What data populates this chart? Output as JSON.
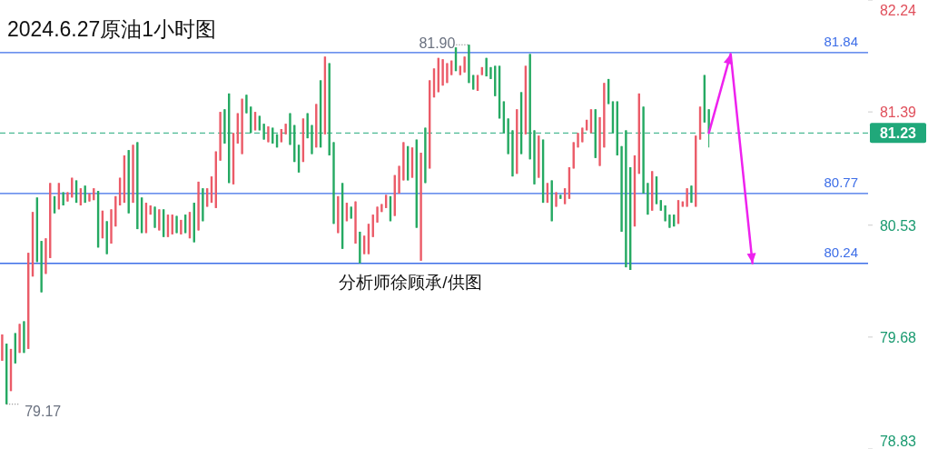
{
  "chart_data": {
    "type": "candlestick",
    "title": "2024.6.27原油1小时图",
    "categories": [
      null,
      null,
      null,
      null,
      null,
      null,
      null,
      null,
      null,
      null,
      null,
      null,
      null,
      null,
      null,
      null,
      null,
      null,
      null,
      null,
      null,
      null,
      null,
      null,
      null,
      null,
      null,
      null,
      null,
      null,
      null,
      null,
      null,
      null,
      null,
      null,
      null,
      null,
      null,
      null,
      null,
      null,
      null,
      null,
      null,
      null,
      null,
      null,
      null,
      null,
      null,
      null,
      null,
      null,
      null,
      null,
      null,
      null,
      null,
      null,
      null,
      null,
      null,
      null,
      null,
      null,
      null,
      null,
      null,
      null,
      null,
      null,
      null,
      null,
      null,
      null,
      null,
      null,
      null,
      null,
      null,
      null,
      null,
      null,
      null,
      null,
      null,
      null,
      null,
      null,
      null,
      null,
      null,
      null,
      null,
      null,
      null,
      null,
      null,
      null,
      null,
      null,
      null,
      null,
      null,
      null,
      null,
      null,
      null,
      null,
      null,
      null,
      null,
      null,
      null,
      null,
      null,
      null,
      null,
      null,
      null,
      null,
      null,
      null,
      null,
      null,
      null,
      null,
      null,
      null,
      null,
      null,
      null,
      null,
      null,
      null,
      null,
      null,
      null,
      null,
      null,
      null,
      null,
      null,
      null,
      null,
      null,
      null,
      null,
      null,
      null,
      null,
      null,
      null,
      null,
      null,
      null,
      null,
      null,
      null,
      null,
      null,
      null,
      null,
      null,
      null,
      null,
      null,
      null,
      null,
      null,
      null,
      null,
      null,
      null,
      null,
      null,
      null,
      null,
      null,
      null,
      null,
      null,
      null,
      null,
      null,
      null,
      null,
      null,
      null,
      null,
      null,
      null,
      null,
      null,
      null,
      null,
      null,
      null
    ],
    "ohlc": [
      [
        79.5,
        79.7,
        79.5,
        79.7
      ],
      [
        79.63,
        79.63,
        79.17,
        79.17
      ],
      [
        79.27,
        79.59,
        79.27,
        79.59
      ],
      [
        79.71,
        79.71,
        79.48,
        79.48
      ],
      [
        79.56,
        79.78,
        79.56,
        79.78
      ],
      [
        79.8,
        79.8,
        79.56,
        79.56
      ],
      [
        79.59,
        80.32,
        79.59,
        80.32
      ],
      [
        80.14,
        80.63,
        80.14,
        80.63
      ],
      [
        80.74,
        80.74,
        80.25,
        80.25
      ],
      [
        80.41,
        80.41,
        80.02,
        80.02
      ],
      [
        80.16,
        80.43,
        80.16,
        80.43
      ],
      [
        80.28,
        80.85,
        80.28,
        80.85
      ],
      [
        80.75,
        80.75,
        80.62,
        80.62
      ],
      [
        80.65,
        80.85,
        80.65,
        80.85
      ],
      [
        80.78,
        80.78,
        80.68,
        80.68
      ],
      [
        80.71,
        80.78,
        80.71,
        80.78
      ],
      [
        80.74,
        80.89,
        80.74,
        80.89
      ],
      [
        80.87,
        80.87,
        80.7,
        80.7
      ],
      [
        80.68,
        80.81,
        80.68,
        80.81
      ],
      [
        80.83,
        80.83,
        80.7,
        80.7
      ],
      [
        80.71,
        80.77,
        80.71,
        80.77
      ],
      [
        80.72,
        80.81,
        80.72,
        80.81
      ],
      [
        80.79,
        80.79,
        80.36,
        80.36
      ],
      [
        80.43,
        80.64,
        80.43,
        80.64
      ],
      [
        80.56,
        80.56,
        80.31,
        80.31
      ],
      [
        80.39,
        80.65,
        80.39,
        80.65
      ],
      [
        80.52,
        80.75,
        80.52,
        80.75
      ],
      [
        80.68,
        80.89,
        80.68,
        80.89
      ],
      [
        80.7,
        81.06,
        80.7,
        81.06
      ],
      [
        81.1,
        81.1,
        80.62,
        80.62
      ],
      [
        80.7,
        81.14,
        80.7,
        81.14
      ],
      [
        81.16,
        81.16,
        80.5,
        80.5
      ],
      [
        80.74,
        80.74,
        80.47,
        80.47
      ],
      [
        80.47,
        80.7,
        80.47,
        80.7
      ],
      [
        80.61,
        80.68,
        80.61,
        80.68
      ],
      [
        80.67,
        80.67,
        80.51,
        80.51
      ],
      [
        80.49,
        80.65,
        80.49,
        80.65
      ],
      [
        80.65,
        80.65,
        80.44,
        80.44
      ],
      [
        80.44,
        80.61,
        80.44,
        80.61
      ],
      [
        80.46,
        80.61,
        80.46,
        80.61
      ],
      [
        80.6,
        80.6,
        80.47,
        80.47
      ],
      [
        80.46,
        80.57,
        80.46,
        80.57
      ],
      [
        80.61,
        80.61,
        80.47,
        80.47
      ],
      [
        80.43,
        80.63,
        80.43,
        80.63
      ],
      [
        80.7,
        80.7,
        80.4,
        80.4
      ],
      [
        80.49,
        80.86,
        80.49,
        80.86
      ],
      [
        80.81,
        80.81,
        80.56,
        80.56
      ],
      [
        80.67,
        80.81,
        80.67,
        80.81
      ],
      [
        80.7,
        80.9,
        80.7,
        80.9
      ],
      [
        80.66,
        81.09,
        80.66,
        81.09
      ],
      [
        81.02,
        81.39,
        81.02,
        81.39
      ],
      [
        81.41,
        81.41,
        81.15,
        81.15
      ],
      [
        81.53,
        81.53,
        80.85,
        80.85
      ],
      [
        80.84,
        81.23,
        80.84,
        81.23
      ],
      [
        81.15,
        81.38,
        81.15,
        81.38
      ],
      [
        81.07,
        81.49,
        81.07,
        81.49
      ],
      [
        81.52,
        81.52,
        81.38,
        81.38
      ],
      [
        81.43,
        81.43,
        81.23,
        81.23
      ],
      [
        81.25,
        81.39,
        81.25,
        81.39
      ],
      [
        81.36,
        81.36,
        81.25,
        81.25
      ],
      [
        81.3,
        81.3,
        81.18,
        81.18
      ],
      [
        81.16,
        81.28,
        81.16,
        81.28
      ],
      [
        81.27,
        81.27,
        81.15,
        81.15
      ],
      [
        81.22,
        81.22,
        81.12,
        81.12
      ],
      [
        81.16,
        81.26,
        81.16,
        81.26
      ],
      [
        81.22,
        81.3,
        81.22,
        81.3
      ],
      [
        81.38,
        81.38,
        81.14,
        81.14
      ],
      [
        81.29,
        81.29,
        81.01,
        81.01
      ],
      [
        81.14,
        81.14,
        80.93,
        80.93
      ],
      [
        81.01,
        81.34,
        81.01,
        81.34
      ],
      [
        81.38,
        81.38,
        81.19,
        81.19
      ],
      [
        81.29,
        81.29,
        81.07,
        81.07
      ],
      [
        81.12,
        81.45,
        81.12,
        81.45
      ],
      [
        81.63,
        81.63,
        81.12,
        81.12
      ],
      [
        81.22,
        81.81,
        81.22,
        81.81
      ],
      [
        81.76,
        81.76,
        81.06,
        81.06
      ],
      [
        81.16,
        81.16,
        80.54,
        80.54
      ],
      [
        80.47,
        80.75,
        80.47,
        80.75
      ],
      [
        80.85,
        80.85,
        80.35,
        80.35
      ],
      [
        80.56,
        80.7,
        80.56,
        80.7
      ],
      [
        80.67,
        80.67,
        80.58,
        80.58
      ],
      [
        80.39,
        80.71,
        80.39,
        80.71
      ],
      [
        80.48,
        80.48,
        80.24,
        80.24
      ],
      [
        80.31,
        80.45,
        80.31,
        80.45
      ],
      [
        80.31,
        80.54,
        80.31,
        80.54
      ],
      [
        80.44,
        80.61,
        80.44,
        80.61
      ],
      [
        80.55,
        80.67,
        80.55,
        80.67
      ],
      [
        80.63,
        80.69,
        80.63,
        80.69
      ],
      [
        80.66,
        80.76,
        80.66,
        80.76
      ],
      [
        80.75,
        80.75,
        80.56,
        80.56
      ],
      [
        80.6,
        80.91,
        80.6,
        80.91
      ],
      [
        80.77,
        80.98,
        80.77,
        80.98
      ],
      [
        80.87,
        81.16,
        80.87,
        81.16
      ],
      [
        81.13,
        81.13,
        80.87,
        80.87
      ],
      [
        80.89,
        81.12,
        80.89,
        81.12
      ],
      [
        81.18,
        81.18,
        80.51,
        80.51
      ],
      [
        80.26,
        81.08,
        80.26,
        81.08
      ],
      [
        81.27,
        81.27,
        80.85,
        80.85
      ],
      [
        80.96,
        81.63,
        80.96,
        81.63
      ],
      [
        81.5,
        81.72,
        81.5,
        81.72
      ],
      [
        81.54,
        81.8,
        81.54,
        81.8
      ],
      [
        81.59,
        81.79,
        81.59,
        81.79
      ],
      [
        81.61,
        81.76,
        81.61,
        81.76
      ],
      [
        81.67,
        81.78,
        81.67,
        81.78
      ],
      [
        81.88,
        81.88,
        81.7,
        81.7
      ],
      [
        81.67,
        81.74,
        81.67,
        81.74
      ],
      [
        81.69,
        81.81,
        81.69,
        81.81
      ],
      [
        81.9,
        81.9,
        81.61,
        81.61
      ],
      [
        81.67,
        81.67,
        81.56,
        81.56
      ],
      [
        81.55,
        81.67,
        81.55,
        81.67
      ],
      [
        81.67,
        81.73,
        81.67,
        81.73
      ],
      [
        81.8,
        81.8,
        81.66,
        81.66
      ],
      [
        81.73,
        81.73,
        81.64,
        81.64
      ],
      [
        81.74,
        81.74,
        81.51,
        81.51
      ],
      [
        81.74,
        81.74,
        81.34,
        81.34
      ],
      [
        81.47,
        81.47,
        81.23,
        81.23
      ],
      [
        81.34,
        81.34,
        81.07,
        81.07
      ],
      [
        81.25,
        81.25,
        80.9,
        80.9
      ],
      [
        80.92,
        81.41,
        80.92,
        81.41
      ],
      [
        81.54,
        81.54,
        81.07,
        81.07
      ],
      [
        81.22,
        81.74,
        81.22,
        81.74
      ],
      [
        81.83,
        81.83,
        81.03,
        81.03
      ],
      [
        81.25,
        81.25,
        80.84,
        80.84
      ],
      [
        80.89,
        81.21,
        80.89,
        81.21
      ],
      [
        81.18,
        81.18,
        80.7,
        80.7
      ],
      [
        80.7,
        80.85,
        80.7,
        80.85
      ],
      [
        80.87,
        80.87,
        80.56,
        80.56
      ],
      [
        80.67,
        80.78,
        80.67,
        80.78
      ],
      [
        80.76,
        80.76,
        80.73,
        80.73
      ],
      [
        80.69,
        80.81,
        80.69,
        80.81
      ],
      [
        80.73,
        80.97,
        80.73,
        80.97
      ],
      [
        80.96,
        81.16,
        80.96,
        81.16
      ],
      [
        81.12,
        81.23,
        81.12,
        81.23
      ],
      [
        81.16,
        81.27,
        81.16,
        81.27
      ],
      [
        81.25,
        81.33,
        81.25,
        81.33
      ],
      [
        81.23,
        81.41,
        81.23,
        81.41
      ],
      [
        81.41,
        81.41,
        81.04,
        81.04
      ],
      [
        80.98,
        81.35,
        80.98,
        81.35
      ],
      [
        81.12,
        81.61,
        81.12,
        81.61
      ],
      [
        81.64,
        81.64,
        81.45,
        81.45
      ],
      [
        81.47,
        81.47,
        81.23,
        81.23
      ],
      [
        81.47,
        81.47,
        81.06,
        81.06
      ],
      [
        81.13,
        81.13,
        80.48,
        80.48
      ],
      [
        81.25,
        81.25,
        80.21,
        80.21
      ],
      [
        80.97,
        80.97,
        80.19,
        80.19
      ],
      [
        80.52,
        81.06,
        80.52,
        81.06
      ],
      [
        80.92,
        81.53,
        80.92,
        81.53
      ],
      [
        81.43,
        81.43,
        80.77,
        80.77
      ],
      [
        80.85,
        80.85,
        80.61,
        80.61
      ],
      [
        80.64,
        80.94,
        80.64,
        80.94
      ],
      [
        80.9,
        80.9,
        80.69,
        80.69
      ],
      [
        80.72,
        80.72,
        80.64,
        80.64
      ],
      [
        80.68,
        80.68,
        80.56,
        80.56
      ],
      [
        80.61,
        80.61,
        80.51,
        80.51
      ],
      [
        80.61,
        80.61,
        80.52,
        80.52
      ],
      [
        80.54,
        80.72,
        80.54,
        80.72
      ],
      [
        80.67,
        80.71,
        80.67,
        80.71
      ],
      [
        80.67,
        80.81,
        80.67,
        80.81
      ],
      [
        80.83,
        80.83,
        80.7,
        80.7
      ],
      [
        80.67,
        81.21,
        80.67,
        81.21
      ],
      [
        81.18,
        81.43,
        81.18,
        81.43
      ],
      [
        81.67,
        81.67,
        81.31,
        81.31
      ],
      [
        81.41,
        81.41,
        81.12,
        81.23
      ],
      null,
      null,
      null,
      null,
      null,
      null,
      null,
      null,
      null,
      null,
      null,
      null,
      null,
      null,
      null,
      null,
      null,
      null,
      null,
      null,
      null,
      null,
      null,
      null,
      null,
      null,
      null,
      null,
      null,
      null,
      null,
      null,
      null,
      null,
      null,
      null
    ],
    "colors": [
      "#eb5b68",
      "#25a962",
      "#eb5b68",
      "#25a962",
      "#eb5b68",
      "#25a962",
      "#eb5b68",
      "#eb5b68",
      "#25a962",
      "#25a962",
      "#eb5b68",
      "#eb5b68",
      "#25a962",
      "#eb5b68",
      "#25a962",
      "#eb5b68",
      "#eb5b68",
      "#25a962",
      "#eb5b68",
      "#25a962",
      "#eb5b68",
      "#eb5b68",
      "#25a962",
      "#eb5b68",
      "#25a962",
      "#eb5b68",
      "#eb5b68",
      "#eb5b68",
      "#eb5b68",
      "#25a962",
      "#eb5b68",
      "#25a962",
      "#25a962",
      "#eb5b68",
      "#eb5b68",
      "#25a962",
      "#eb5b68",
      "#25a962",
      "#eb5b68",
      "#eb5b68",
      "#25a962",
      "#eb5b68",
      "#25a962",
      "#eb5b68",
      "#25a962",
      "#eb5b68",
      "#25a962",
      "#eb5b68",
      "#eb5b68",
      "#eb5b68",
      "#eb5b68",
      "#25a962",
      "#25a962",
      "#eb5b68",
      "#eb5b68",
      "#eb5b68",
      "#25a962",
      "#25a962",
      "#eb5b68",
      "#25a962",
      "#25a962",
      "#eb5b68",
      "#25a962",
      "#25a962",
      "#eb5b68",
      "#eb5b68",
      "#25a962",
      "#25a962",
      "#25a962",
      "#eb5b68",
      "#25a962",
      "#25a962",
      "#eb5b68",
      "#25a962",
      "#eb5b68",
      "#25a962",
      "#25a962",
      "#eb5b68",
      "#25a962",
      "#eb5b68",
      "#25a962",
      "#eb5b68",
      "#25a962",
      "#eb5b68",
      "#eb5b68",
      "#eb5b68",
      "#eb5b68",
      "#eb5b68",
      "#eb5b68",
      "#25a962",
      "#eb5b68",
      "#eb5b68",
      "#eb5b68",
      "#25a962",
      "#eb5b68",
      "#25a962",
      "#eb5b68",
      "#25a962",
      "#eb5b68",
      "#eb5b68",
      "#eb5b68",
      "#eb5b68",
      "#eb5b68",
      "#eb5b68",
      "#25a962",
      "#eb5b68",
      "#eb5b68",
      "#25a962",
      "#25a962",
      "#eb5b68",
      "#eb5b68",
      "#25a962",
      "#25a962",
      "#25a962",
      "#25a962",
      "#25a962",
      "#25a962",
      "#25a962",
      "#eb5b68",
      "#25a962",
      "#eb5b68",
      "#25a962",
      "#25a962",
      "#eb5b68",
      "#25a962",
      "#eb5b68",
      "#25a962",
      "#eb5b68",
      "#25a962",
      "#eb5b68",
      "#eb5b68",
      "#eb5b68",
      "#eb5b68",
      "#eb5b68",
      "#eb5b68",
      "#eb5b68",
      "#25a962",
      "#eb5b68",
      "#eb5b68",
      "#25a962",
      "#25a962",
      "#25a962",
      "#25a962",
      "#25a962",
      "#25a962",
      "#eb5b68",
      "#eb5b68",
      "#25a962",
      "#25a962",
      "#eb5b68",
      "#25a962",
      "#25a962",
      "#25a962",
      "#25a962",
      "#25a962",
      "#eb5b68",
      "#eb5b68",
      "#eb5b68",
      "#25a962",
      "#eb5b68",
      "#eb5b68",
      "#25a962",
      "#25a962",
      null,
      null,
      null,
      null,
      null,
      null,
      null,
      null,
      null,
      null,
      null,
      null,
      null,
      null,
      null,
      null,
      null,
      null,
      null,
      null,
      null,
      null,
      null,
      null,
      null,
      null,
      null,
      null,
      null,
      null,
      null,
      null,
      null,
      null,
      null,
      null
    ],
    "series": [
      {
        "type": "line",
        "color": "#ee22ee",
        "values": [
          null,
          null,
          null,
          null,
          null,
          null,
          null,
          null,
          null,
          null,
          null,
          null,
          null,
          null,
          null,
          null,
          null,
          null,
          null,
          null,
          null,
          null,
          null,
          null,
          null,
          null,
          null,
          null,
          null,
          null,
          null,
          null,
          null,
          null,
          null,
          null,
          null,
          null,
          null,
          null,
          null,
          null,
          null,
          null,
          null,
          null,
          null,
          null,
          null,
          null,
          null,
          null,
          null,
          null,
          null,
          null,
          null,
          null,
          null,
          null,
          null,
          null,
          null,
          null,
          null,
          null,
          null,
          null,
          null,
          null,
          null,
          null,
          null,
          null,
          null,
          null,
          null,
          null,
          null,
          null,
          null,
          null,
          null,
          null,
          null,
          null,
          null,
          null,
          null,
          null,
          null,
          null,
          null,
          null,
          null,
          null,
          null,
          null,
          null,
          null,
          null,
          null,
          null,
          null,
          null,
          null,
          null,
          null,
          null,
          null,
          null,
          null,
          null,
          null,
          null,
          null,
          null,
          null,
          null,
          null,
          null,
          null,
          null,
          null,
          null,
          null,
          null,
          null,
          null,
          null,
          null,
          null,
          null,
          null,
          null,
          null,
          null,
          null,
          null,
          null,
          null,
          null,
          null,
          null,
          null,
          null,
          null,
          null,
          null,
          null,
          null,
          null,
          null,
          null,
          null,
          null,
          null,
          null,
          null,
          null,
          null,
          null,
          81.23,
          null,
          null,
          null,
          null,
          81.83,
          null,
          null,
          null,
          null,
          80.24,
          null,
          null,
          null,
          null,
          null,
          null,
          null,
          null,
          null,
          null,
          null,
          null,
          null,
          null,
          null,
          null,
          null,
          null,
          null,
          null,
          null,
          null,
          null,
          null,
          null,
          null
        ]
      }
    ],
    "ylim": [
      78.83,
      82.24
    ],
    "yticks": [
      82.24,
      81.39,
      80.53,
      79.68,
      78.83
    ],
    "tick_labels": "y",
    "ref_lines": [
      {
        "axis": "y",
        "value": 81.84,
        "label": "81.84",
        "color": "#3d6ee8"
      },
      {
        "axis": "y",
        "value": 80.77,
        "label": "80.77",
        "color": "#3d6ee8"
      },
      {
        "axis": "y",
        "value": 80.24,
        "label": "80.24",
        "color": "#3d6ee8"
      },
      {
        "axis": "y",
        "value": 81.23,
        "label": "81.23",
        "color": "#20a87a",
        "line_style": "dashed"
      }
    ],
    "annotations": [
      "81.90",
      "79.17",
      "分析师徐顾承/供图"
    ]
  }
}
